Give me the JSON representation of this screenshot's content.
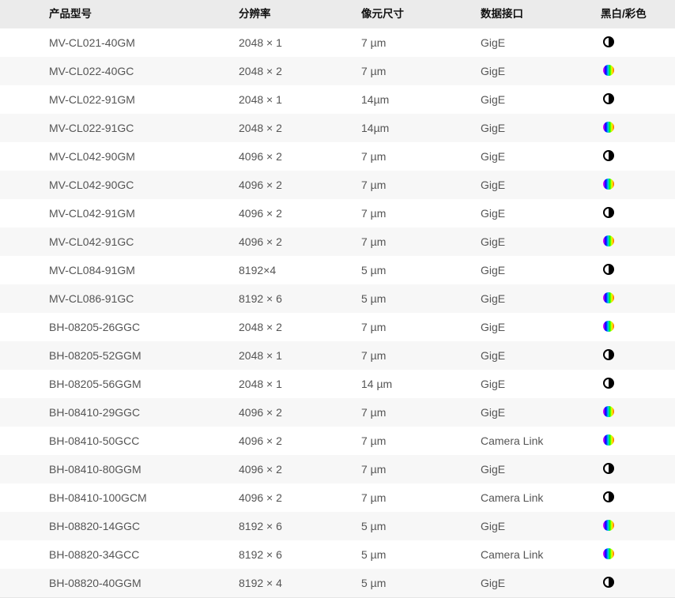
{
  "table": {
    "headers": [
      "产品型号",
      "分辨率",
      "像元尺寸",
      "数据接口",
      "黑白/彩色"
    ],
    "rows": [
      {
        "model": "MV-CL021-40GM",
        "resolution": "2048 × 1",
        "pixel": "7 µm",
        "interface": "GigE",
        "type": "mono"
      },
      {
        "model": "MV-CL022-40GC",
        "resolution": "2048 × 2",
        "pixel": "7 µm",
        "interface": "GigE",
        "type": "color"
      },
      {
        "model": "MV-CL022-91GM",
        "resolution": "2048 × 1",
        "pixel": "14µm",
        "interface": "GigE",
        "type": "mono"
      },
      {
        "model": "MV-CL022-91GC",
        "resolution": "2048 × 2",
        "pixel": "14µm",
        "interface": "GigE",
        "type": "color"
      },
      {
        "model": "MV-CL042-90GM",
        "resolution": "4096 × 2",
        "pixel": "7 µm",
        "interface": "GigE",
        "type": "mono"
      },
      {
        "model": "MV-CL042-90GC",
        "resolution": "4096 × 2",
        "pixel": "7 µm",
        "interface": "GigE",
        "type": "color"
      },
      {
        "model": "MV-CL042-91GM",
        "resolution": "4096 × 2",
        "pixel": "7 µm",
        "interface": "GigE",
        "type": "mono"
      },
      {
        "model": "MV-CL042-91GC",
        "resolution": "4096 × 2",
        "pixel": "7 µm",
        "interface": "GigE",
        "type": "color"
      },
      {
        "model": "MV-CL084-91GM",
        "resolution": "8192×4",
        "pixel": "5 µm",
        "interface": "GigE",
        "type": "mono"
      },
      {
        "model": "MV-CL086-91GC",
        "resolution": "8192 × 6",
        "pixel": "5 µm",
        "interface": "GigE",
        "type": "color"
      },
      {
        "model": "BH-08205-26GGC",
        "resolution": "2048 × 2",
        "pixel": "7 µm",
        "interface": "GigE",
        "type": "color"
      },
      {
        "model": "BH-08205-52GGM",
        "resolution": "2048 × 1",
        "pixel": "7 µm",
        "interface": "GigE",
        "type": "mono"
      },
      {
        "model": "BH-08205-56GGM",
        "resolution": "2048 × 1",
        "pixel": "14 µm",
        "interface": "GigE",
        "type": "mono"
      },
      {
        "model": "BH-08410-29GGC",
        "resolution": "4096 × 2",
        "pixel": "7 µm",
        "interface": "GigE",
        "type": "color"
      },
      {
        "model": "BH-08410-50GCC",
        "resolution": "4096 × 2",
        "pixel": "7 µm",
        "interface": "Camera Link",
        "type": "color"
      },
      {
        "model": "BH-08410-80GGM",
        "resolution": "4096 × 2",
        "pixel": "7 µm",
        "interface": "GigE",
        "type": "mono"
      },
      {
        "model": "BH-08410-100GCM",
        "resolution": "4096 × 2",
        "pixel": "7 µm",
        "interface": "Camera Link",
        "type": "mono"
      },
      {
        "model": "BH-08820-14GGC",
        "resolution": "8192 × 6",
        "pixel": "5 µm",
        "interface": "GigE",
        "type": "color"
      },
      {
        "model": "BH-08820-34GCC",
        "resolution": "8192 × 6",
        "pixel": "5 µm",
        "interface": "Camera Link",
        "type": "color"
      },
      {
        "model": "BH-08820-40GGM",
        "resolution": "8192 × 4",
        "pixel": "5 µm",
        "interface": "GigE",
        "type": "mono"
      }
    ]
  },
  "icons": {
    "mono": "half-circle-bw-icon",
    "color": "rainbow-circle-icon"
  }
}
